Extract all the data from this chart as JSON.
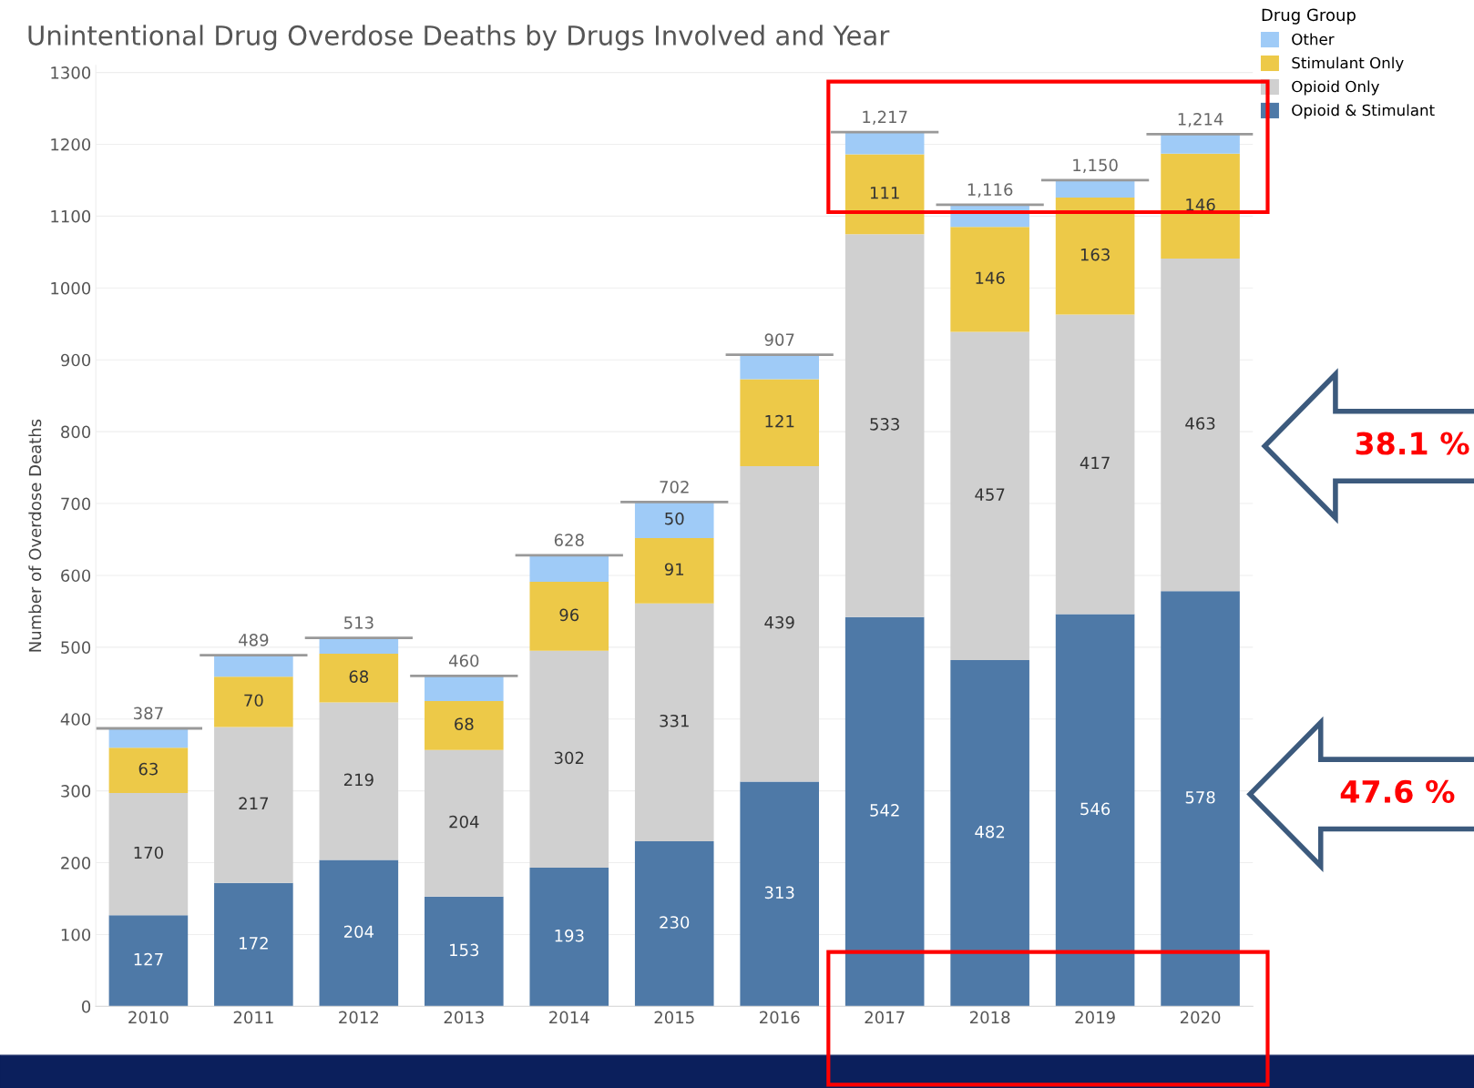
{
  "chart_data": {
    "type": "bar",
    "stacked": true,
    "title": "Unintentional Drug Overdose Deaths by Drugs Involved and Year",
    "ylabel": "Number of Overdose Deaths",
    "legend_title": "Drug Group",
    "legend": "top right",
    "categories": [
      "2010",
      "2011",
      "2012",
      "2013",
      "2014",
      "2015",
      "2016",
      "2017",
      "2018",
      "2019",
      "2020"
    ],
    "series": [
      {
        "name": "Opioid & Stimulant",
        "color": "#4e79a7",
        "values": [
          127,
          172,
          204,
          153,
          193,
          230,
          313,
          542,
          482,
          546,
          578
        ],
        "value_labels": [
          "127",
          "172",
          "204",
          "153",
          "193",
          "230",
          "313",
          "542",
          "482",
          "546",
          "578"
        ]
      },
      {
        "name": "Opioid Only",
        "color": "#d0d0d0",
        "values": [
          170,
          217,
          219,
          204,
          302,
          331,
          439,
          533,
          457,
          417,
          463
        ],
        "value_labels": [
          "170",
          "217",
          "219",
          "204",
          "302",
          "331",
          "439",
          "533",
          "457",
          "417",
          "463"
        ]
      },
      {
        "name": "Stimulant Only",
        "color": "#edc948",
        "values": [
          63,
          70,
          68,
          68,
          96,
          91,
          121,
          111,
          146,
          163,
          146
        ],
        "value_labels": [
          "63",
          "70",
          "68",
          "68",
          "96",
          "91",
          "121",
          "111",
          "146",
          "163",
          "146"
        ]
      },
      {
        "name": "Other",
        "color": "#9fcbf7",
        "values": [
          27,
          30,
          22,
          35,
          37,
          50,
          34,
          31,
          31,
          24,
          27
        ],
        "value_labels": [
          null,
          null,
          null,
          null,
          null,
          "50",
          null,
          null,
          null,
          null,
          null
        ]
      }
    ],
    "totals": [
      "387",
      "489",
      "513",
      "460",
      "628",
      "702",
      "907",
      "1,217",
      "1,116",
      "1,150",
      "1,214"
    ],
    "ylim": [
      0,
      1310
    ],
    "yticks": [
      0,
      100,
      200,
      300,
      400,
      500,
      600,
      700,
      800,
      900,
      1000,
      1100,
      1200,
      1300
    ],
    "grid": "y",
    "annotations": [
      "38.1 %",
      "47.6 %"
    ]
  }
}
